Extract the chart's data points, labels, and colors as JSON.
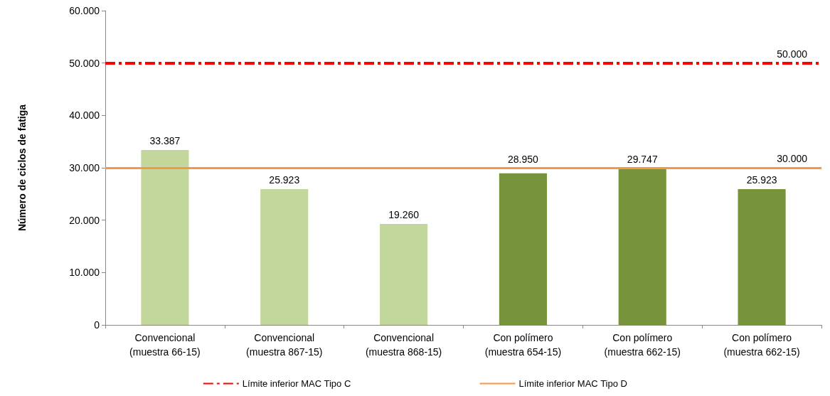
{
  "chart_data": {
    "type": "bar",
    "ylabel": "Número de ciclos de fatiga",
    "categories": [
      "Convencional\n(muestra 66-15)",
      "Convencional\n(muestra 867-15)",
      "Convencional\n(muestra 868-15)",
      "Con polímero\n(muestra 654-15)",
      "Con polímero\n(muestra 662-15)",
      "Con polímero\n(muestra 662-15)"
    ],
    "values": [
      33387,
      25923,
      19260,
      28950,
      29747,
      25923
    ],
    "value_labels": [
      "33.387",
      "25.923",
      "19.260",
      "28.950",
      "29.747",
      "25.923"
    ],
    "colors": [
      "#c3d69b",
      "#c3d69b",
      "#c3d69b",
      "#77933c",
      "#77933c",
      "#77933c"
    ],
    "ylim": [
      0,
      60000
    ],
    "yticks": [
      {
        "value": 0,
        "label": "0"
      },
      {
        "value": 10000,
        "label": "10.000"
      },
      {
        "value": 20000,
        "label": "20.000"
      },
      {
        "value": 30000,
        "label": "30.000"
      },
      {
        "value": 40000,
        "label": "40.000"
      },
      {
        "value": 50000,
        "label": "50.000"
      },
      {
        "value": 60000,
        "label": "60.000"
      }
    ],
    "ref_lines": [
      {
        "axis": "y",
        "value": 50000,
        "label": "Límite inferior MAC Tipo C",
        "color": "#ff0000",
        "line_style": "dashed"
      },
      {
        "axis": "y",
        "value": 30000,
        "label": "Límite inferior MAC Tipo D",
        "color": "#f79646",
        "line_style": "solid"
      }
    ],
    "annotations": [
      {
        "text": "50.000",
        "y": 50000
      },
      {
        "text": "30.000",
        "y": 30000
      }
    ],
    "grid": false,
    "legend": "bottom"
  }
}
